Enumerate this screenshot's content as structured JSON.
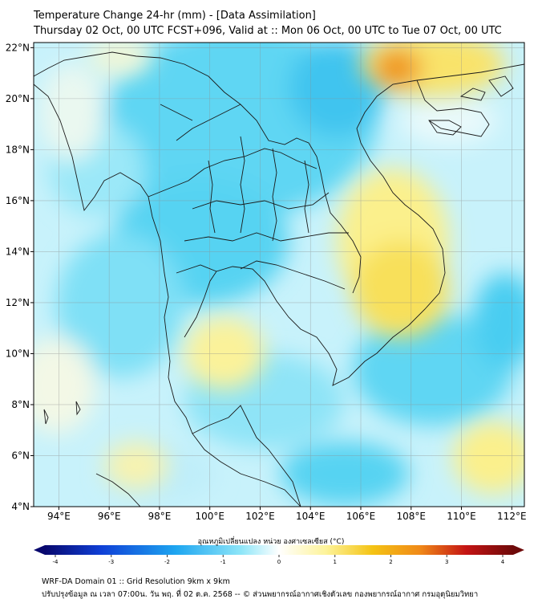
{
  "title": "Temperature Change 24-hr (mm) - [Data Assimilation]",
  "subtitle": "Thursday 02 Oct, 00 UTC FCST+096, Valid at :: Mon 06 Oct, 00 UTC to Tue 07 Oct, 00 UTC",
  "colorbar": {
    "label": "อุณหภูมิเปลี่ยนแปลง หน่วย องศาเซลเซียส (°C)",
    "ticks": [
      "-4",
      "-3",
      "-2",
      "-1",
      "0",
      "1",
      "2",
      "3",
      "4"
    ],
    "colors": [
      "#08086e",
      "#0f3fd6",
      "#1ea6f0",
      "#7fe3f7",
      "#ffffff",
      "#fdf39a",
      "#f4c314",
      "#f08a18",
      "#c41414",
      "#6e0a0a"
    ]
  },
  "map": {
    "lon_ticks": [
      "94°E",
      "96°E",
      "98°E",
      "100°E",
      "102°E",
      "104°E",
      "106°E",
      "108°E",
      "110°E",
      "112°E"
    ],
    "lat_ticks": [
      "22°N",
      "20°N",
      "18°N",
      "16°N",
      "14°N",
      "12°N",
      "10°N",
      "8°N",
      "6°N",
      "4°N"
    ],
    "lon_range": [
      93,
      112.5
    ],
    "lat_range": [
      4,
      22.2
    ]
  },
  "footer": {
    "line1": "WRF-DA Domain 01 :: Grid Resolution 9km x 9km",
    "line2": "ปรับปรุงข้อมูล ณ เวลา 07:00น. วัน พฤ. ที่ 02 ต.ค. 2568 -- © ส่วนพยากรณ์อากาศเชิงตัวเลข กองพยากรณ์อากาศ กรมอุตุนิยมวิทยา"
  }
}
